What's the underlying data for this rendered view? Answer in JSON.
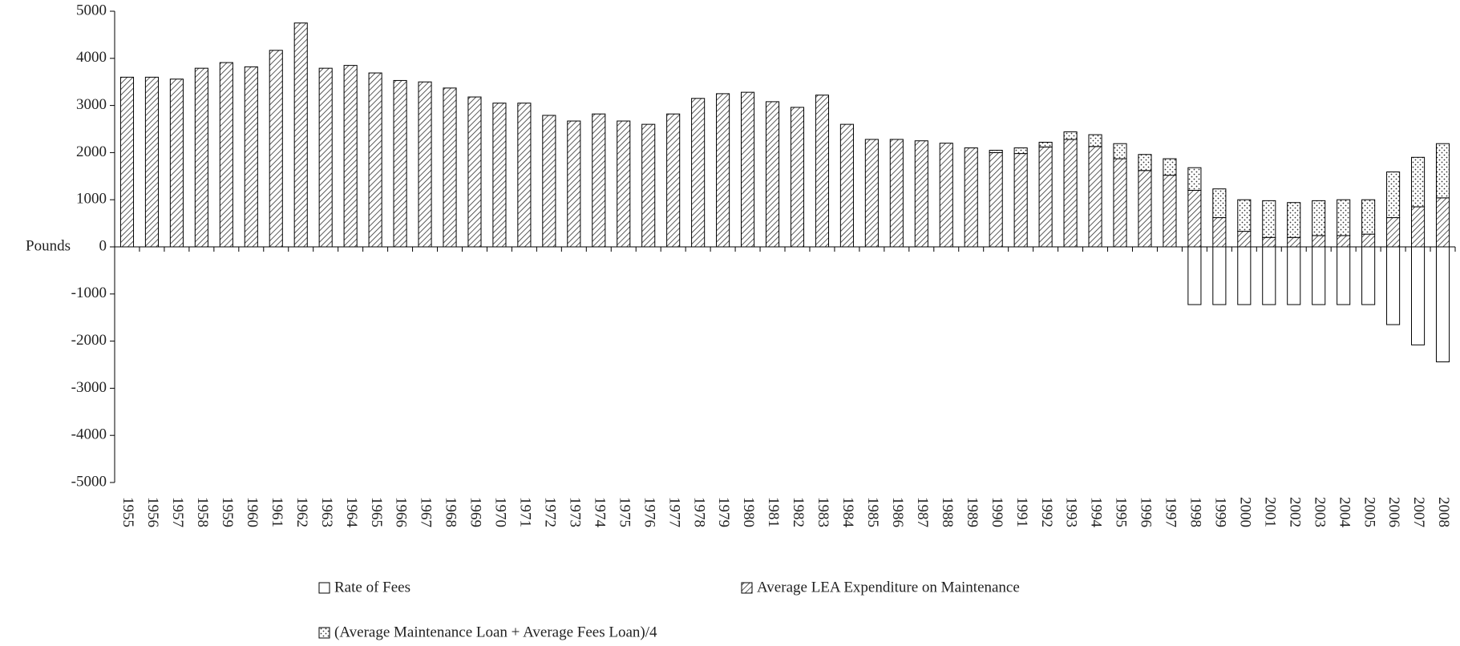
{
  "chart_data": {
    "type": "stacked_bar",
    "y_label": "Pounds",
    "categories": [
      "1955",
      "1956",
      "1957",
      "1958",
      "1959",
      "1960",
      "1961",
      "1962",
      "1963",
      "1964",
      "1965",
      "1966",
      "1967",
      "1968",
      "1969",
      "1970",
      "1971",
      "1972",
      "1973",
      "1974",
      "1975",
      "1976",
      "1977",
      "1978",
      "1979",
      "1980",
      "1981",
      "1982",
      "1983",
      "1984",
      "1985",
      "1986",
      "1987",
      "1988",
      "1989",
      "1990",
      "1991",
      "1992",
      "1993",
      "1994",
      "1995",
      "1996",
      "1997",
      "1998",
      "1999",
      "2000",
      "2001",
      "2002",
      "2003",
      "2004",
      "2005",
      "2006",
      "2007",
      "2008"
    ],
    "series": [
      {
        "name": "Rate of Fees",
        "color": "#ffffff",
        "pattern": "none",
        "values": [
          null,
          null,
          null,
          null,
          null,
          null,
          null,
          null,
          null,
          null,
          null,
          null,
          null,
          null,
          null,
          null,
          null,
          null,
          null,
          null,
          null,
          null,
          null,
          null,
          null,
          null,
          null,
          null,
          null,
          null,
          null,
          null,
          null,
          null,
          null,
          null,
          null,
          null,
          null,
          null,
          null,
          null,
          null,
          -1225,
          -1225,
          -1225,
          -1225,
          -1225,
          -1225,
          -1225,
          -1225,
          -1650,
          -2080,
          -2440
        ]
      },
      {
        "name": "Average LEA Expenditure on Maintenance",
        "color": "#ffffff",
        "pattern": "hatch",
        "values": [
          3600,
          3600,
          3560,
          3790,
          3910,
          3820,
          4170,
          4750,
          3790,
          3850,
          3690,
          3530,
          3500,
          3370,
          3180,
          3050,
          3050,
          2790,
          2670,
          2820,
          2670,
          2600,
          2820,
          3150,
          3250,
          3280,
          3080,
          2960,
          3220,
          2600,
          2280,
          2280,
          2250,
          2200,
          2100,
          2000,
          1980,
          2120,
          2280,
          2130,
          1870,
          1620,
          1520,
          1200,
          620,
          330,
          200,
          200,
          240,
          240,
          270,
          620,
          850,
          1040
        ]
      },
      {
        "name": "(Average Maintenance Loan + Average Fees Loan)/4",
        "color": "#ffffff",
        "pattern": "dots",
        "values": [
          null,
          null,
          null,
          null,
          null,
          null,
          null,
          null,
          null,
          null,
          null,
          null,
          null,
          null,
          null,
          null,
          null,
          null,
          null,
          null,
          null,
          null,
          null,
          null,
          null,
          null,
          null,
          null,
          null,
          null,
          null,
          null,
          null,
          null,
          null,
          50,
          120,
          100,
          160,
          250,
          320,
          340,
          350,
          480,
          610,
          670,
          780,
          740,
          740,
          760,
          730,
          970,
          1050,
          1150
        ]
      }
    ],
    "ylim": [
      -5000,
      5000
    ],
    "yticks": [
      -5000,
      -4000,
      -3000,
      -2000,
      -1000,
      0,
      1000,
      2000,
      3000,
      4000,
      5000
    ],
    "grid": false,
    "legend": "bottom"
  }
}
